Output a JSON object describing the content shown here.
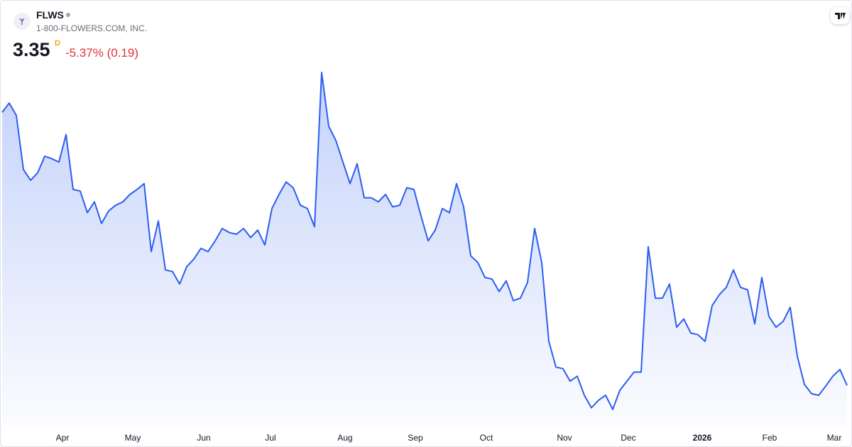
{
  "header": {
    "symbol": "FLWS",
    "company": "1-800-FLOWERS.COM, INC.",
    "price": "3.35",
    "interval": "D",
    "change": "-5.37% (0.19)"
  },
  "chart_data": {
    "type": "area",
    "color": "#2c5ef0",
    "values": [
      6.64,
      6.75,
      6.6,
      5.95,
      5.82,
      5.91,
      6.11,
      6.08,
      6.04,
      6.37,
      5.71,
      5.69,
      5.43,
      5.56,
      5.3,
      5.45,
      5.52,
      5.56,
      5.65,
      5.71,
      5.78,
      4.96,
      5.33,
      4.74,
      4.72,
      4.57,
      4.78,
      4.87,
      5.0,
      4.96,
      5.09,
      5.24,
      5.19,
      5.17,
      5.24,
      5.13,
      5.22,
      5.04,
      5.48,
      5.65,
      5.8,
      5.73,
      5.52,
      5.48,
      5.26,
      7.12,
      6.47,
      6.3,
      6.04,
      5.78,
      6.02,
      5.61,
      5.61,
      5.56,
      5.65,
      5.5,
      5.52,
      5.73,
      5.71,
      5.39,
      5.09,
      5.22,
      5.48,
      5.43,
      5.78,
      5.5,
      4.91,
      4.83,
      4.65,
      4.63,
      4.48,
      4.61,
      4.37,
      4.4,
      4.59,
      5.24,
      4.83,
      3.88,
      3.57,
      3.55,
      3.4,
      3.46,
      3.23,
      3.08,
      3.17,
      3.23,
      3.06,
      3.29,
      3.4,
      3.51,
      3.51,
      5.02,
      4.4,
      4.4,
      4.57,
      4.05,
      4.15,
      3.98,
      3.96,
      3.88,
      4.31,
      4.44,
      4.53,
      4.74,
      4.53,
      4.5,
      4.09,
      4.65,
      4.18,
      4.05,
      4.12,
      4.29,
      3.7,
      3.36,
      3.25,
      3.23,
      3.34,
      3.46,
      3.54,
      3.35
    ],
    "xticks": [
      {
        "value": 8.5,
        "label": "Apr"
      },
      {
        "value": 18.4,
        "label": "May"
      },
      {
        "value": 28.4,
        "label": "Jun"
      },
      {
        "value": 37.8,
        "label": "Jul"
      },
      {
        "value": 48.3,
        "label": "Aug"
      },
      {
        "value": 58.2,
        "label": "Sep"
      },
      {
        "value": 68.2,
        "label": "Oct"
      },
      {
        "value": 79.2,
        "label": "Nov"
      },
      {
        "value": 88.2,
        "label": "Dec"
      },
      {
        "value": 98.6,
        "label": "2026"
      },
      {
        "value": 108.1,
        "label": "Feb"
      },
      {
        "value": 117.2,
        "label": "Mar"
      }
    ]
  }
}
